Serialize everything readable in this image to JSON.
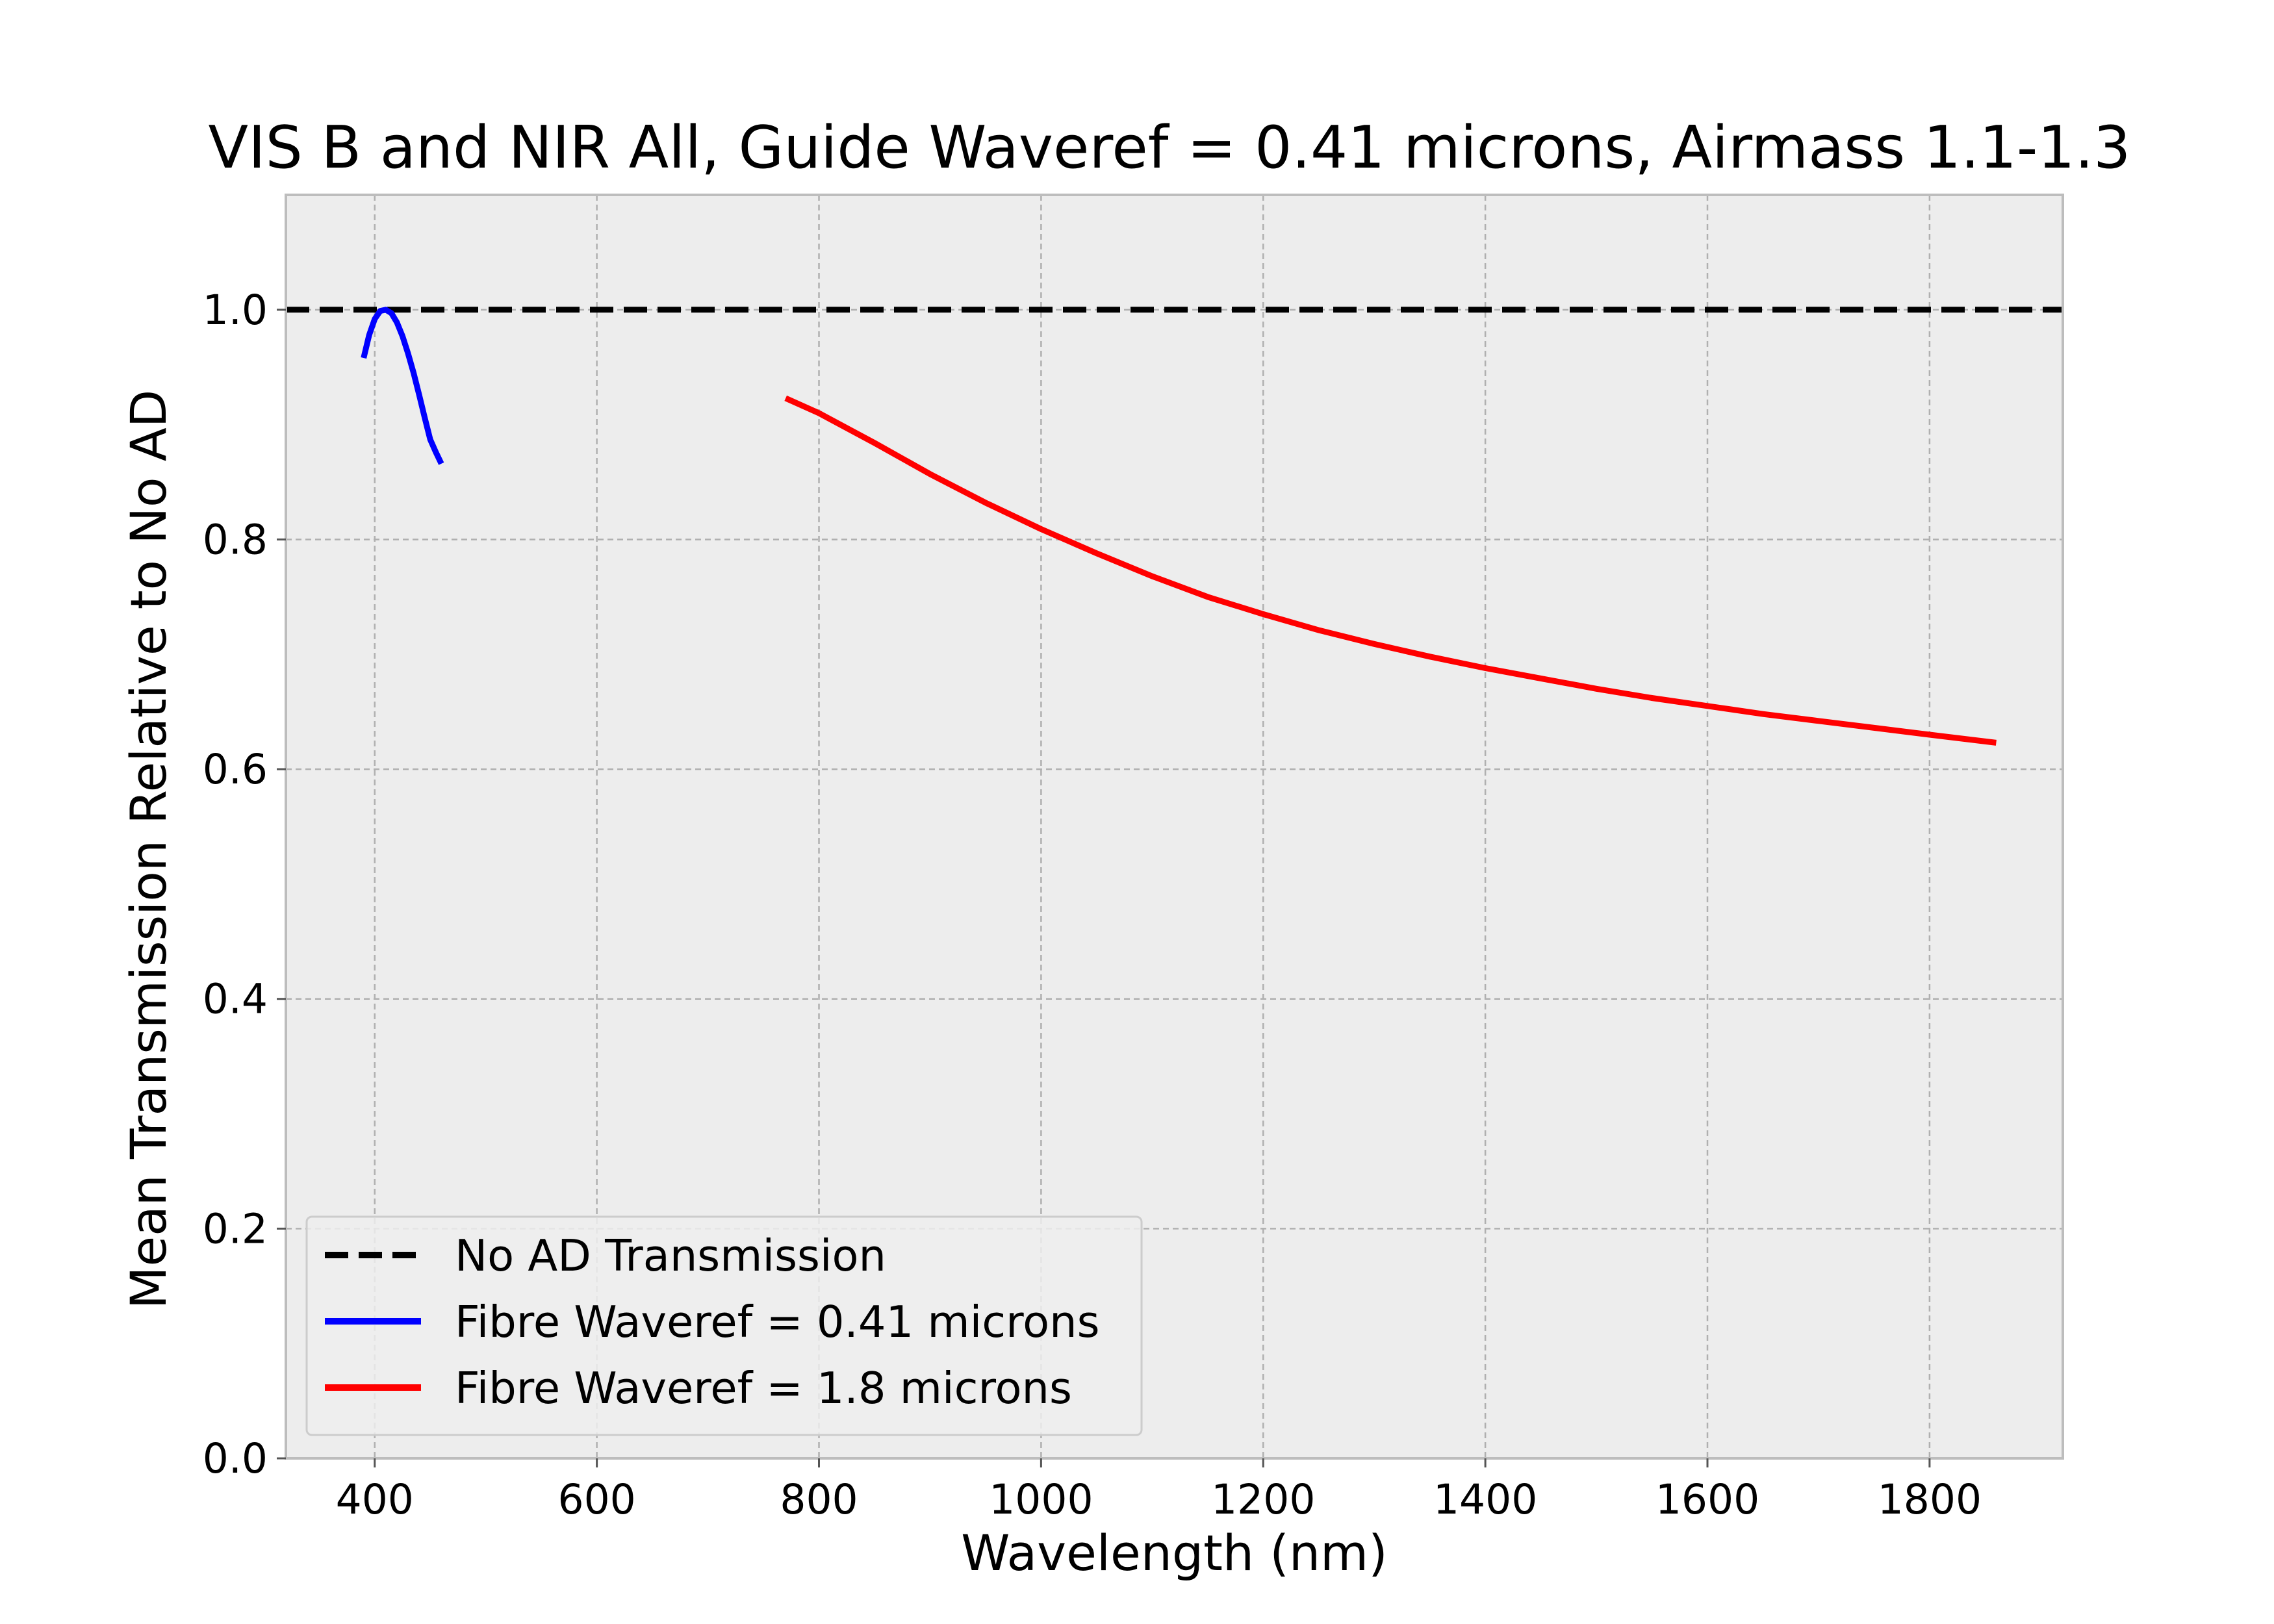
{
  "chart_data": {
    "type": "line",
    "title": "VIS B and NIR All, Guide Waveref = 0.41 microns, Airmass 1.1-1.3",
    "xlabel": "Wavelength (nm)",
    "ylabel": "Mean Transmission Relative to No AD",
    "xlim": [
      320,
      1920
    ],
    "ylim": [
      0,
      1.1
    ],
    "xticks": [
      400,
      600,
      800,
      1000,
      1200,
      1400,
      1600,
      1800
    ],
    "yticks": [
      0.0,
      0.2,
      0.4,
      0.6,
      0.8,
      1.0
    ],
    "grid": true,
    "legend_position": "lower-left",
    "series": [
      {
        "name": "No AD Transmission",
        "style": "dashed",
        "color": "#000000",
        "x": [
          320,
          1920
        ],
        "y": [
          1.0,
          1.0
        ]
      },
      {
        "name": "Fibre Waveref = 0.41 microns",
        "style": "solid",
        "color": "#0000ff",
        "x": [
          390,
          395,
          400,
          405,
          410,
          415,
          420,
          425,
          430,
          435,
          440,
          445,
          450,
          455,
          460
        ],
        "y": [
          0.958,
          0.978,
          0.992,
          0.999,
          1.0,
          0.997,
          0.989,
          0.977,
          0.962,
          0.945,
          0.926,
          0.906,
          0.887,
          0.876,
          0.866
        ]
      },
      {
        "name": "Fibre Waveref = 1.8 microns",
        "style": "solid",
        "color": "#ff0000",
        "x": [
          770,
          800,
          850,
          900,
          950,
          1000,
          1050,
          1100,
          1150,
          1200,
          1250,
          1300,
          1350,
          1400,
          1450,
          1500,
          1550,
          1600,
          1650,
          1700,
          1750,
          1800,
          1860
        ],
        "y": [
          0.923,
          0.91,
          0.884,
          0.857,
          0.832,
          0.809,
          0.788,
          0.768,
          0.75,
          0.735,
          0.721,
          0.709,
          0.698,
          0.688,
          0.679,
          0.67,
          0.662,
          0.655,
          0.648,
          0.642,
          0.636,
          0.63,
          0.623
        ]
      }
    ]
  }
}
